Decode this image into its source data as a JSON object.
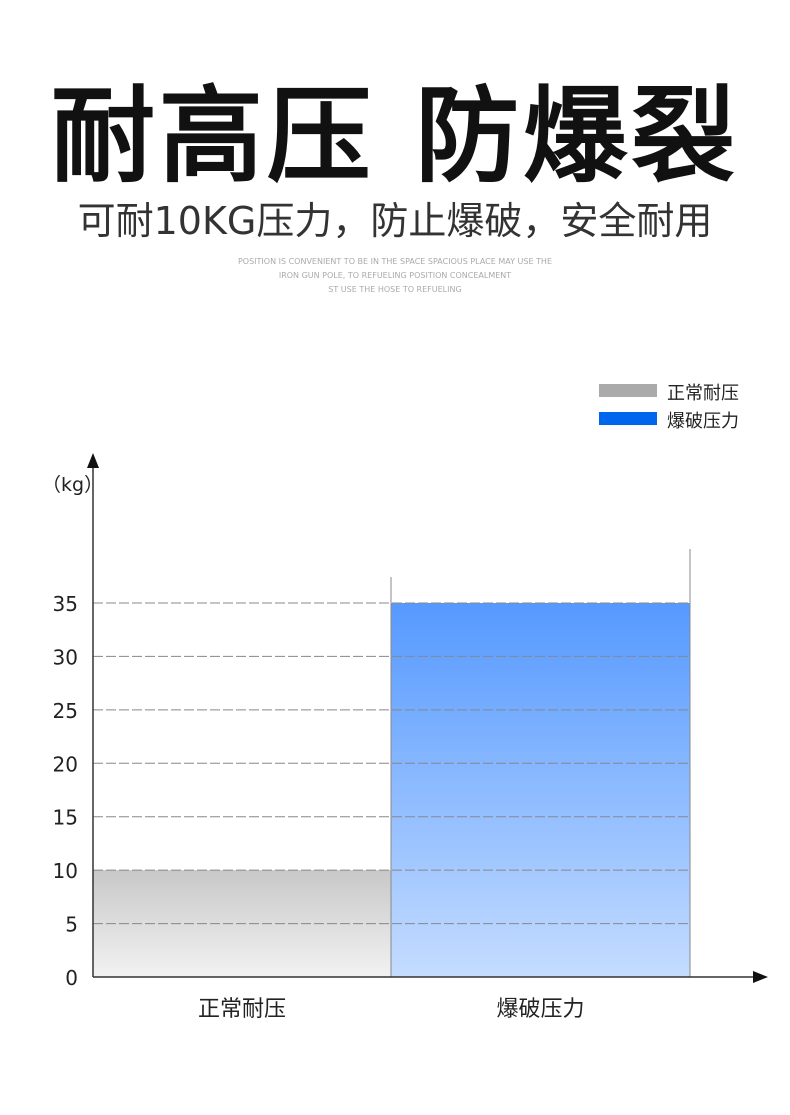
{
  "header": {
    "title": "耐高压 防爆裂",
    "subtitle": "可耐10KG压力，防止爆破，安全耐用",
    "english_lines": [
      "POSITION IS CONVENIENT TO BE IN THE SPACE SPACIOUS PLACE MAY USE THE",
      "IRON GUN POLE, TO REFUELING POSITION CONCEALMENT",
      "ST USE THE HOSE TO REFUELING"
    ]
  },
  "chart_data": {
    "type": "bar",
    "categories": [
      "正常耐压",
      "爆破压力"
    ],
    "values": [
      10,
      35
    ],
    "ylabel": "（kg）",
    "ylim": [
      0,
      35
    ],
    "yticks": [
      "0",
      "5",
      "10",
      "15",
      "20",
      "25",
      "30",
      "35"
    ],
    "grid": true,
    "legend": {
      "placement": "top-right",
      "entries": [
        "正常耐压",
        "爆破压力"
      ]
    },
    "colors": {
      "正常耐压": "#aaaaaa",
      "爆破压力": "#0066ee",
      "blue_bar_top": "#5599ff",
      "blue_bar_bottom": "#c4dcff",
      "gray_bar_top": "#c8c8c8",
      "gray_bar_bottom": "#f2f2f2"
    }
  }
}
